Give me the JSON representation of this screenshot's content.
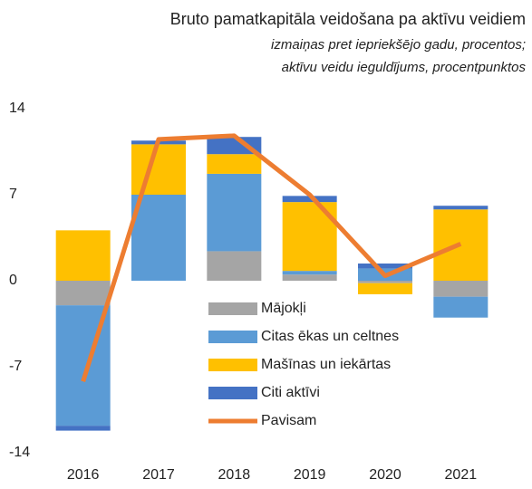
{
  "chart_data": {
    "type": "stacked_bar_line",
    "title": "Bruto pamatkapitāla veidošana pa aktīvu veidiem",
    "subtitle": [
      "izmaiņas pret iepriekšējo gadu, procentos;",
      "aktīvu veidu ieguldījums, procentpunktos"
    ],
    "categories": [
      "2016",
      "2017",
      "2018",
      "2019",
      "2020",
      "2021"
    ],
    "series": [
      {
        "name": "Mājokļi",
        "color": "#a5a5a5",
        "values": [
          -2.0,
          0.0,
          2.4,
          0.5,
          -0.2,
          -1.3
        ]
      },
      {
        "name": "Citas ēkas un celtnes",
        "color": "#5b9bd5",
        "values": [
          -9.8,
          7.0,
          6.3,
          0.3,
          1.0,
          -1.7
        ]
      },
      {
        "name": "Mašīnas un iekārtas",
        "color": "#ffc000",
        "values": [
          4.1,
          4.1,
          1.6,
          5.6,
          -0.9,
          5.8
        ]
      },
      {
        "name": "Citi aktīvi",
        "color": "#4472c4",
        "values": [
          -0.4,
          0.3,
          1.4,
          0.5,
          0.4,
          0.3
        ]
      },
      {
        "name": "Pavisam",
        "color": "#ed7d31",
        "type": "line",
        "values": [
          -8.2,
          11.5,
          11.8,
          7.0,
          0.4,
          3.0
        ]
      }
    ],
    "ylim": [
      -14,
      14
    ],
    "yticks": [
      -14,
      -7,
      0,
      7,
      14
    ],
    "legend": "center"
  }
}
